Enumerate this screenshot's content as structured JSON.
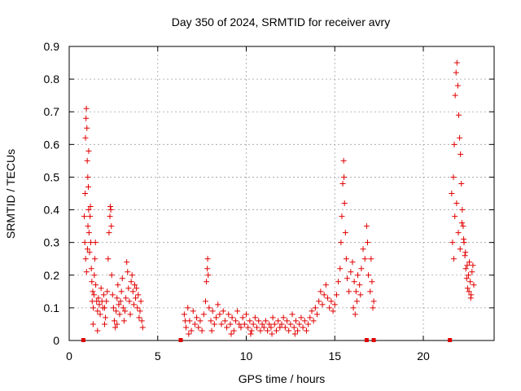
{
  "chart_data": {
    "type": "scatter",
    "title": "Day 350 of 2024, SRMTID for receiver avry",
    "xlabel": "GPS time / hours",
    "ylabel": "SRMTID / TECUs",
    "xlim": [
      0,
      24
    ],
    "ylim": [
      0,
      0.9
    ],
    "xticks": [
      "0",
      "5",
      "10",
      "15",
      "20"
    ],
    "yticks": [
      "0",
      "0.1",
      "0.2",
      "0.3",
      "0.4",
      "0.5",
      "0.6",
      "0.7",
      "0.8",
      "0.9"
    ],
    "xtick_values": [
      0,
      5,
      10,
      15,
      20
    ],
    "ytick_values": [
      0,
      0.1,
      0.2,
      0.3,
      0.4,
      0.5,
      0.6,
      0.7,
      0.8,
      0.9
    ],
    "grid": true,
    "color": "#e00000",
    "marker": "plus",
    "series": [
      {
        "name": "SRMTID",
        "points": [
          [
            0.85,
            0.38
          ],
          [
            0.9,
            0.45
          ],
          [
            0.92,
            0.62
          ],
          [
            0.95,
            0.68
          ],
          [
            0.97,
            0.71
          ],
          [
            1.0,
            0.65
          ],
          [
            1.02,
            0.55
          ],
          [
            1.05,
            0.5
          ],
          [
            1.08,
            0.47
          ],
          [
            1.1,
            0.58
          ],
          [
            0.88,
            0.3
          ],
          [
            0.93,
            0.25
          ],
          [
            0.98,
            0.21
          ],
          [
            1.03,
            0.28
          ],
          [
            1.06,
            0.35
          ],
          [
            1.1,
            0.4
          ],
          [
            1.12,
            0.33
          ],
          [
            1.15,
            0.27
          ],
          [
            1.18,
            0.38
          ],
          [
            1.2,
            0.41
          ],
          [
            1.22,
            0.3
          ],
          [
            1.25,
            0.22
          ],
          [
            1.28,
            0.18
          ],
          [
            1.3,
            0.12
          ],
          [
            1.33,
            0.15
          ],
          [
            1.36,
            0.1
          ],
          [
            1.4,
            0.14
          ],
          [
            1.42,
            0.2
          ],
          [
            1.45,
            0.25
          ],
          [
            1.48,
            0.3
          ],
          [
            1.5,
            0.17
          ],
          [
            1.55,
            0.12
          ],
          [
            1.6,
            0.09
          ],
          [
            1.65,
            0.13
          ],
          [
            1.7,
            0.11
          ],
          [
            1.75,
            0.08
          ],
          [
            1.8,
            0.16
          ],
          [
            1.85,
            0.12
          ],
          [
            1.9,
            0.1
          ],
          [
            1.95,
            0.14
          ],
          [
            2.0,
            0.1
          ],
          [
            2.05,
            0.07
          ],
          [
            2.1,
            0.12
          ],
          [
            2.15,
            0.15
          ],
          [
            2.2,
            0.25
          ],
          [
            2.25,
            0.33
          ],
          [
            2.3,
            0.38
          ],
          [
            2.32,
            0.41
          ],
          [
            2.35,
            0.4
          ],
          [
            2.38,
            0.35
          ],
          [
            2.4,
            0.2
          ],
          [
            2.45,
            0.14
          ],
          [
            2.5,
            0.1
          ],
          [
            2.55,
            0.06
          ],
          [
            2.6,
            0.04
          ],
          [
            2.65,
            0.09
          ],
          [
            2.7,
            0.13
          ],
          [
            2.75,
            0.17
          ],
          [
            2.8,
            0.11
          ],
          [
            2.85,
            0.08
          ],
          [
            2.9,
            0.12
          ],
          [
            2.95,
            0.15
          ],
          [
            3.0,
            0.19
          ],
          [
            3.05,
            0.1
          ],
          [
            3.1,
            0.06
          ],
          [
            3.15,
            0.09
          ],
          [
            3.2,
            0.13
          ],
          [
            3.25,
            0.24
          ],
          [
            3.3,
            0.21
          ],
          [
            3.35,
            0.16
          ],
          [
            3.4,
            0.12
          ],
          [
            3.45,
            0.08
          ],
          [
            3.5,
            0.18
          ],
          [
            3.55,
            0.2
          ],
          [
            3.6,
            0.15
          ],
          [
            3.65,
            0.11
          ],
          [
            3.7,
            0.17
          ],
          [
            3.75,
            0.13
          ],
          [
            3.8,
            0.16
          ],
          [
            3.85,
            0.1
          ],
          [
            3.9,
            0.14
          ],
          [
            3.95,
            0.07
          ],
          [
            4.0,
            0.09
          ],
          [
            4.05,
            0.12
          ],
          [
            4.1,
            0.06
          ],
          [
            4.15,
            0.04
          ],
          [
            1.35,
            0.05
          ],
          [
            1.6,
            0.03
          ],
          [
            2.0,
            0.05
          ],
          [
            2.7,
            0.05
          ],
          [
            6.5,
            0.08
          ],
          [
            6.6,
            0.04
          ],
          [
            6.7,
            0.1
          ],
          [
            6.8,
            0.06
          ],
          [
            6.9,
            0.03
          ],
          [
            7.0,
            0.09
          ],
          [
            7.1,
            0.05
          ],
          [
            7.2,
            0.07
          ],
          [
            7.3,
            0.04
          ],
          [
            7.4,
            0.06
          ],
          [
            7.5,
            0.03
          ],
          [
            7.6,
            0.08
          ],
          [
            7.7,
            0.12
          ],
          [
            7.75,
            0.18
          ],
          [
            7.8,
            0.22
          ],
          [
            7.82,
            0.25
          ],
          [
            7.85,
            0.2
          ],
          [
            7.9,
            0.1
          ],
          [
            8.0,
            0.06
          ],
          [
            8.1,
            0.09
          ],
          [
            8.2,
            0.05
          ],
          [
            8.3,
            0.07
          ],
          [
            8.4,
            0.11
          ],
          [
            8.5,
            0.08
          ],
          [
            8.6,
            0.05
          ],
          [
            8.7,
            0.09
          ],
          [
            8.8,
            0.06
          ],
          [
            8.9,
            0.04
          ],
          [
            9.0,
            0.08
          ],
          [
            9.1,
            0.05
          ],
          [
            9.2,
            0.07
          ],
          [
            9.3,
            0.03
          ],
          [
            9.4,
            0.06
          ],
          [
            9.5,
            0.09
          ],
          [
            9.6,
            0.05
          ],
          [
            9.7,
            0.04
          ],
          [
            9.8,
            0.07
          ],
          [
            9.9,
            0.05
          ],
          [
            10.0,
            0.08
          ],
          [
            10.1,
            0.04
          ],
          [
            10.2,
            0.06
          ],
          [
            10.3,
            0.03
          ],
          [
            10.4,
            0.05
          ],
          [
            10.5,
            0.07
          ],
          [
            10.6,
            0.04
          ],
          [
            10.7,
            0.06
          ],
          [
            10.8,
            0.03
          ],
          [
            10.9,
            0.05
          ],
          [
            11.0,
            0.04
          ],
          [
            11.1,
            0.06
          ],
          [
            11.2,
            0.03
          ],
          [
            11.3,
            0.05
          ],
          [
            11.4,
            0.04
          ],
          [
            11.5,
            0.07
          ],
          [
            11.6,
            0.05
          ],
          [
            11.7,
            0.03
          ],
          [
            11.8,
            0.06
          ],
          [
            11.9,
            0.04
          ],
          [
            12.0,
            0.05
          ],
          [
            12.1,
            0.07
          ],
          [
            12.2,
            0.04
          ],
          [
            12.3,
            0.06
          ],
          [
            12.4,
            0.03
          ],
          [
            12.5,
            0.05
          ],
          [
            12.6,
            0.08
          ],
          [
            12.7,
            0.04
          ],
          [
            12.8,
            0.06
          ],
          [
            12.9,
            0.03
          ],
          [
            13.0,
            0.05
          ],
          [
            13.1,
            0.07
          ],
          [
            13.2,
            0.04
          ],
          [
            13.3,
            0.06
          ],
          [
            13.4,
            0.03
          ],
          [
            13.5,
            0.05
          ],
          [
            13.6,
            0.07
          ],
          [
            13.7,
            0.09
          ],
          [
            13.8,
            0.06
          ],
          [
            13.9,
            0.1
          ],
          [
            14.0,
            0.08
          ],
          [
            14.1,
            0.12
          ],
          [
            14.2,
            0.15
          ],
          [
            14.3,
            0.11
          ],
          [
            14.4,
            0.14
          ],
          [
            14.5,
            0.17
          ],
          [
            14.6,
            0.13
          ],
          [
            14.7,
            0.1
          ],
          [
            14.8,
            0.12
          ],
          [
            14.9,
            0.09
          ],
          [
            15.0,
            0.11
          ],
          [
            15.1,
            0.14
          ],
          [
            15.2,
            0.18
          ],
          [
            15.3,
            0.22
          ],
          [
            15.35,
            0.3
          ],
          [
            15.4,
            0.38
          ],
          [
            15.45,
            0.48
          ],
          [
            15.5,
            0.55
          ],
          [
            15.52,
            0.5
          ],
          [
            15.55,
            0.42
          ],
          [
            15.6,
            0.33
          ],
          [
            15.65,
            0.25
          ],
          [
            15.7,
            0.19
          ],
          [
            15.8,
            0.15
          ],
          [
            15.9,
            0.21
          ],
          [
            16.0,
            0.24
          ],
          [
            16.1,
            0.18
          ],
          [
            16.2,
            0.15
          ],
          [
            16.3,
            0.2
          ],
          [
            16.4,
            0.17
          ],
          [
            16.5,
            0.22
          ],
          [
            16.6,
            0.28
          ],
          [
            16.7,
            0.25
          ],
          [
            16.8,
            0.35
          ],
          [
            16.85,
            0.3
          ],
          [
            16.9,
            0.2
          ],
          [
            17.0,
            0.15
          ],
          [
            17.05,
            0.25
          ],
          [
            17.1,
            0.18
          ],
          [
            17.15,
            0.1
          ],
          [
            17.2,
            0.12
          ],
          [
            16.05,
            0.1
          ],
          [
            16.25,
            0.12
          ],
          [
            16.45,
            0.14
          ],
          [
            16.15,
            0.08
          ],
          [
            6.55,
            0.06
          ],
          [
            6.75,
            0.02
          ],
          [
            8.05,
            0.03
          ],
          [
            9.15,
            0.02
          ],
          [
            10.25,
            0.02
          ],
          [
            11.45,
            0.02
          ],
          [
            12.75,
            0.02
          ],
          [
            21.6,
            0.45
          ],
          [
            21.7,
            0.5
          ],
          [
            21.75,
            0.6
          ],
          [
            21.8,
            0.75
          ],
          [
            21.85,
            0.82
          ],
          [
            21.9,
            0.85
          ],
          [
            21.95,
            0.78
          ],
          [
            22.0,
            0.69
          ],
          [
            22.05,
            0.62
          ],
          [
            22.1,
            0.57
          ],
          [
            22.15,
            0.48
          ],
          [
            22.2,
            0.4
          ],
          [
            22.25,
            0.35
          ],
          [
            22.3,
            0.3
          ],
          [
            22.35,
            0.26
          ],
          [
            22.4,
            0.22
          ],
          [
            22.45,
            0.19
          ],
          [
            22.5,
            0.16
          ],
          [
            22.55,
            0.2
          ],
          [
            22.6,
            0.24
          ],
          [
            22.65,
            0.18
          ],
          [
            22.7,
            0.14
          ],
          [
            22.75,
            0.21
          ],
          [
            22.8,
            0.23
          ],
          [
            22.85,
            0.17
          ],
          [
            21.65,
            0.3
          ],
          [
            21.72,
            0.25
          ],
          [
            21.78,
            0.38
          ],
          [
            21.88,
            0.42
          ],
          [
            21.98,
            0.33
          ],
          [
            22.08,
            0.28
          ],
          [
            22.18,
            0.36
          ],
          [
            22.28,
            0.31
          ],
          [
            22.38,
            0.27
          ],
          [
            22.48,
            0.23
          ],
          [
            22.58,
            0.15
          ],
          [
            22.68,
            0.13
          ]
        ]
      }
    ],
    "gap_markers": [
      0.8,
      6.3,
      16.8,
      17.2,
      21.5
    ]
  }
}
